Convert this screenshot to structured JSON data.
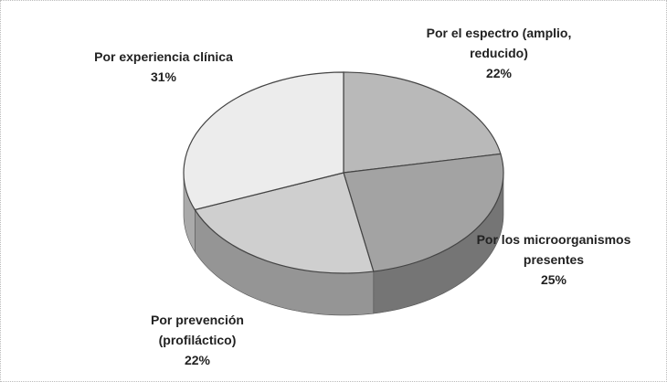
{
  "chart_data": {
    "type": "pie",
    "categories": [
      "Por el espectro (amplio, reducido)",
      "Por los microorganismos presentes",
      "Por prevención (profiláctico)",
      "Por experiencia clínica"
    ],
    "values": [
      22,
      25,
      22,
      31
    ],
    "value_labels": [
      "22%",
      "25%",
      "22%",
      "31%"
    ],
    "colors": [
      "#b9b9b9",
      "#a3a3a3",
      "#cfcfcf",
      "#ececec"
    ]
  }
}
